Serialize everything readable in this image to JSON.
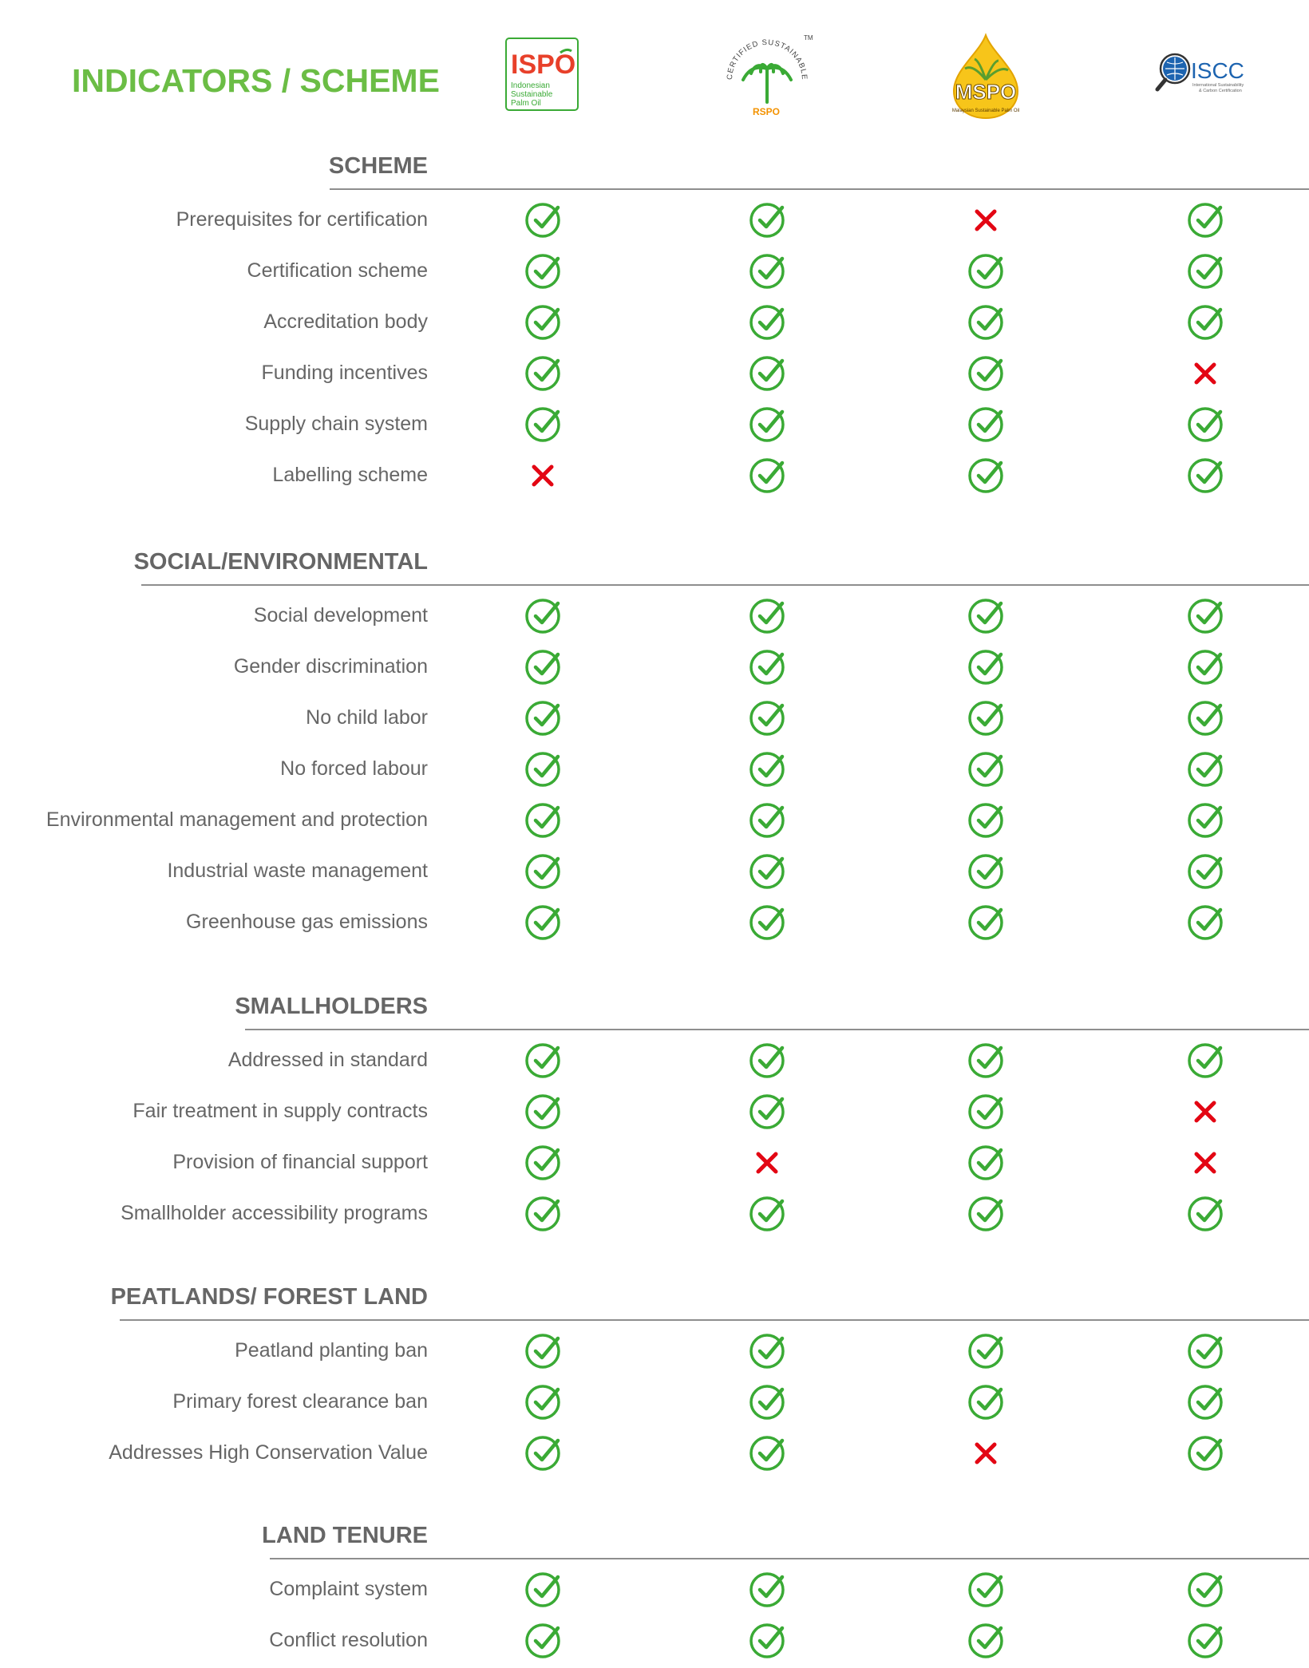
{
  "header": {
    "title": "INDICATORS / SCHEME",
    "logos": [
      {
        "name": "ispo",
        "text": "ISPO",
        "sub1": "Indonesian",
        "sub2": "Sustainable",
        "sub3": "Palm Oil"
      },
      {
        "name": "rspo",
        "ring": "CERTIFIED SUSTAINABLE PALM OIL",
        "text": "RSPO",
        "tm": "TM"
      },
      {
        "name": "mspo",
        "text": "MSPO",
        "ring": "Malaysian Sustainable Palm Oil"
      },
      {
        "name": "iscc",
        "text": "ISCC",
        "sub1": "International Sustainability",
        "sub2": "& Carbon Certification"
      }
    ]
  },
  "colors": {
    "check": "#3aaa35",
    "cross": "#e30613",
    "title": "#6bbd45"
  },
  "sections": [
    {
      "title": "SCHEME",
      "rows": [
        {
          "label": "Prerequisites for certification",
          "values": [
            "check",
            "check",
            "cross",
            "check"
          ]
        },
        {
          "label": "Certification scheme",
          "values": [
            "check",
            "check",
            "check",
            "check"
          ]
        },
        {
          "label": "Accreditation body",
          "values": [
            "check",
            "check",
            "check",
            "check"
          ]
        },
        {
          "label": "Funding incentives",
          "values": [
            "check",
            "check",
            "check",
            "cross"
          ]
        },
        {
          "label": "Supply chain system",
          "values": [
            "check",
            "check",
            "check",
            "check"
          ]
        },
        {
          "label": "Labelling scheme",
          "values": [
            "cross",
            "check",
            "check",
            "check"
          ]
        }
      ]
    },
    {
      "title": "SOCIAL/ENVIRONMENTAL",
      "rows": [
        {
          "label": "Social development",
          "values": [
            "check",
            "check",
            "check",
            "check"
          ]
        },
        {
          "label": "Gender discrimination",
          "values": [
            "check",
            "check",
            "check",
            "check"
          ]
        },
        {
          "label": "No child labor",
          "values": [
            "check",
            "check",
            "check",
            "check"
          ]
        },
        {
          "label": "No forced labour",
          "values": [
            "check",
            "check",
            "check",
            "check"
          ]
        },
        {
          "label": "Environmental management and protection",
          "values": [
            "check",
            "check",
            "check",
            "check"
          ]
        },
        {
          "label": "Industrial waste management",
          "values": [
            "check",
            "check",
            "check",
            "check"
          ]
        },
        {
          "label": "Greenhouse gas emissions",
          "values": [
            "check",
            "check",
            "check",
            "check"
          ]
        }
      ]
    },
    {
      "title": "SMALLHOLDERS",
      "rows": [
        {
          "label": "Addressed in standard",
          "values": [
            "check",
            "check",
            "check",
            "check"
          ]
        },
        {
          "label": "Fair treatment in supply contracts",
          "values": [
            "check",
            "check",
            "check",
            "cross"
          ]
        },
        {
          "label": "Provision of financial support",
          "values": [
            "check",
            "cross",
            "check",
            "cross"
          ]
        },
        {
          "label": "Smallholder accessibility programs",
          "values": [
            "check",
            "check",
            "check",
            "check"
          ]
        }
      ]
    },
    {
      "title": "PEATLANDS/ FOREST LAND",
      "rows": [
        {
          "label": "Peatland planting ban",
          "values": [
            "check",
            "check",
            "check",
            "check"
          ]
        },
        {
          "label": "Primary forest clearance ban",
          "values": [
            "check",
            "check",
            "check",
            "check"
          ]
        },
        {
          "label": "Addresses High Conservation Value",
          "values": [
            "check",
            "check",
            "cross",
            "check"
          ]
        }
      ]
    },
    {
      "title": "LAND TENURE",
      "rows": [
        {
          "label": "Complaint system",
          "values": [
            "check",
            "check",
            "check",
            "check"
          ]
        },
        {
          "label": "Conflict resolution",
          "values": [
            "check",
            "check",
            "check",
            "check"
          ]
        }
      ]
    }
  ]
}
